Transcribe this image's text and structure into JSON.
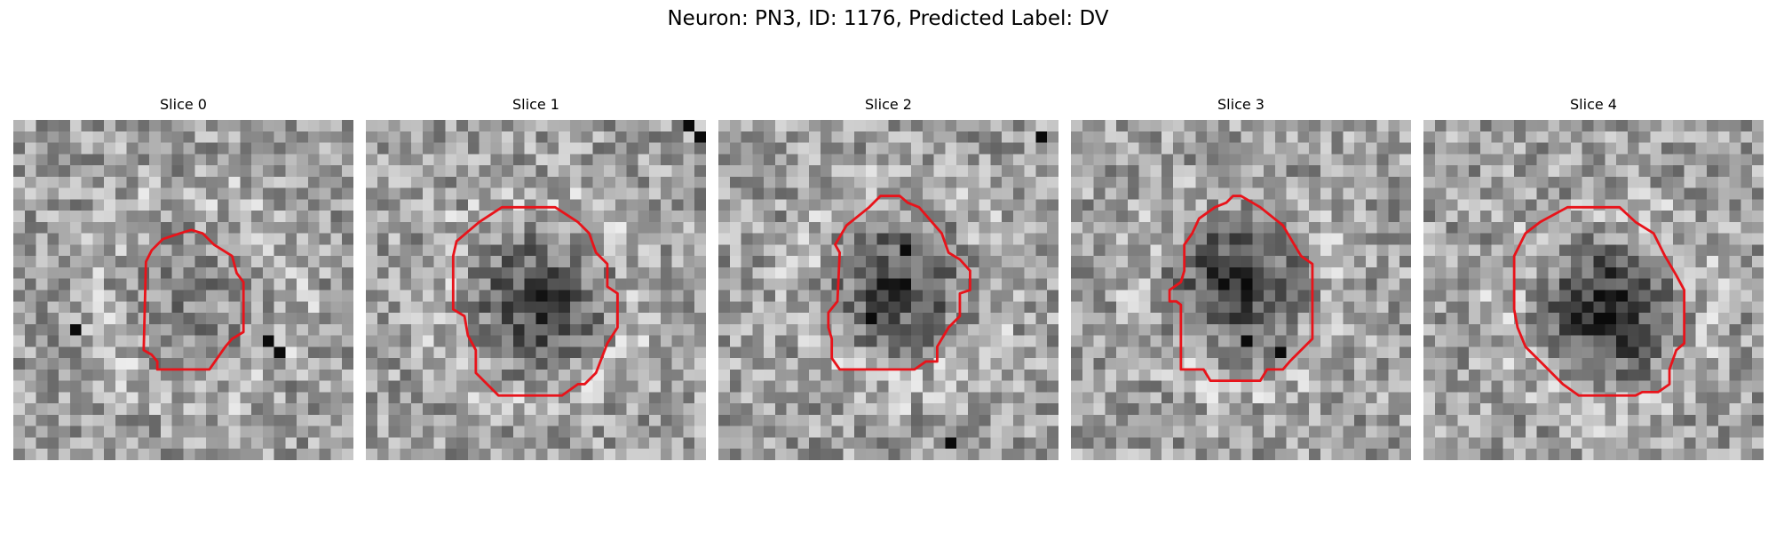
{
  "figure": {
    "title": "Neuron: PN3, ID: 1176, Predicted Label: DV"
  },
  "panels": [
    {
      "label": "Slice 0",
      "blob_darkness": 0.1,
      "grid_size": 30,
      "contour": [
        [
          12.2,
          11.5
        ],
        [
          13.2,
          10.5
        ],
        [
          14.7,
          10.0
        ],
        [
          15.7,
          9.7
        ],
        [
          16.7,
          10.0
        ],
        [
          17.7,
          11.0
        ],
        [
          19.3,
          12.0
        ],
        [
          19.7,
          13.5
        ],
        [
          20.3,
          14.3
        ],
        [
          20.3,
          18.7
        ],
        [
          19.3,
          19.3
        ],
        [
          18.7,
          20.0
        ],
        [
          17.3,
          22.0
        ],
        [
          12.7,
          22.0
        ],
        [
          12.7,
          21.3
        ],
        [
          12.2,
          20.7
        ],
        [
          11.5,
          20.3
        ],
        [
          11.7,
          12.5
        ]
      ],
      "dark_specks": [
        [
          5,
          18
        ],
        [
          22,
          19
        ],
        [
          23,
          20
        ]
      ]
    },
    {
      "label": "Slice 1",
      "blob_darkness": 0.45,
      "grid_size": 30,
      "contour": [
        [
          8.0,
          10.7
        ],
        [
          10.0,
          9.0
        ],
        [
          12.0,
          7.7
        ],
        [
          16.7,
          7.7
        ],
        [
          18.7,
          9.0
        ],
        [
          19.7,
          10.0
        ],
        [
          20.3,
          11.7
        ],
        [
          21.3,
          12.7
        ],
        [
          21.3,
          14.7
        ],
        [
          22.2,
          15.3
        ],
        [
          22.2,
          18.3
        ],
        [
          21.3,
          19.7
        ],
        [
          20.3,
          22.3
        ],
        [
          19.3,
          23.3
        ],
        [
          18.7,
          23.3
        ],
        [
          17.3,
          24.3
        ],
        [
          11.7,
          24.3
        ],
        [
          9.7,
          22.3
        ],
        [
          9.7,
          20.3
        ],
        [
          9.0,
          19.0
        ],
        [
          8.7,
          17.3
        ],
        [
          7.7,
          16.7
        ],
        [
          7.7,
          12.0
        ]
      ],
      "dark_specks": [
        [
          28,
          0
        ],
        [
          29,
          1
        ]
      ]
    },
    {
      "label": "Slice 2",
      "blob_darkness": 0.4,
      "grid_size": 30,
      "contour": [
        [
          10.3,
          11.0
        ],
        [
          11.3,
          9.3
        ],
        [
          13.3,
          7.7
        ],
        [
          14.3,
          6.7
        ],
        [
          16.0,
          6.7
        ],
        [
          16.7,
          7.3
        ],
        [
          17.7,
          7.7
        ],
        [
          19.7,
          10.0
        ],
        [
          20.3,
          11.7
        ],
        [
          21.3,
          12.3
        ],
        [
          22.2,
          13.3
        ],
        [
          22.2,
          15.0
        ],
        [
          21.3,
          15.3
        ],
        [
          21.3,
          17.3
        ],
        [
          20.3,
          18.3
        ],
        [
          19.3,
          20.0
        ],
        [
          19.3,
          21.3
        ],
        [
          18.3,
          21.3
        ],
        [
          17.3,
          22.0
        ],
        [
          10.7,
          22.0
        ],
        [
          10.0,
          21.0
        ],
        [
          10.0,
          19.3
        ],
        [
          9.7,
          18.3
        ],
        [
          9.7,
          17.0
        ],
        [
          10.5,
          16.0
        ],
        [
          10.7,
          11.7
        ]
      ],
      "dark_specks": [
        [
          28,
          1
        ],
        [
          16,
          11
        ],
        [
          13,
          17
        ],
        [
          20,
          28
        ]
      ]
    },
    {
      "label": "Slice 3",
      "blob_darkness": 0.45,
      "grid_size": 30,
      "contour": [
        [
          10.7,
          10.0
        ],
        [
          11.3,
          8.7
        ],
        [
          12.7,
          7.7
        ],
        [
          13.7,
          7.3
        ],
        [
          14.3,
          6.7
        ],
        [
          15.0,
          6.7
        ],
        [
          16.7,
          7.7
        ],
        [
          18.7,
          9.3
        ],
        [
          19.7,
          11.0
        ],
        [
          20.3,
          12.0
        ],
        [
          21.3,
          12.7
        ],
        [
          21.3,
          19.3
        ],
        [
          20.3,
          20.3
        ],
        [
          19.3,
          21.3
        ],
        [
          18.7,
          22.0
        ],
        [
          17.3,
          22.0
        ],
        [
          16.7,
          23.0
        ],
        [
          12.3,
          23.0
        ],
        [
          11.7,
          22.0
        ],
        [
          9.7,
          22.0
        ],
        [
          9.7,
          16.3
        ],
        [
          9.3,
          16.0
        ],
        [
          8.7,
          16.0
        ],
        [
          8.7,
          15.0
        ],
        [
          9.7,
          14.3
        ],
        [
          10.0,
          13.3
        ],
        [
          10.0,
          11.0
        ]
      ],
      "dark_specks": [
        [
          15,
          14
        ],
        [
          15,
          19
        ],
        [
          18,
          20
        ]
      ]
    },
    {
      "label": "Slice 4",
      "blob_darkness": 0.55,
      "grid_size": 30,
      "contour": [
        [
          8.0,
          12.0
        ],
        [
          9.0,
          10.0
        ],
        [
          10.3,
          9.0
        ],
        [
          12.7,
          7.7
        ],
        [
          17.3,
          7.7
        ],
        [
          18.7,
          9.0
        ],
        [
          20.3,
          10.0
        ],
        [
          21.3,
          12.0
        ],
        [
          22.3,
          13.7
        ],
        [
          23.0,
          15.0
        ],
        [
          23.0,
          19.7
        ],
        [
          22.3,
          20.3
        ],
        [
          21.7,
          22.0
        ],
        [
          21.7,
          23.3
        ],
        [
          20.7,
          24.0
        ],
        [
          19.3,
          24.0
        ],
        [
          18.7,
          24.3
        ],
        [
          13.7,
          24.3
        ],
        [
          12.3,
          23.3
        ],
        [
          10.7,
          21.7
        ],
        [
          9.0,
          20.0
        ],
        [
          8.3,
          18.3
        ],
        [
          8.0,
          16.7
        ]
      ],
      "dark_specks": [
        [
          15,
          17
        ],
        [
          16,
          17
        ]
      ]
    }
  ],
  "style": {
    "contour_color": "#e8131a"
  }
}
